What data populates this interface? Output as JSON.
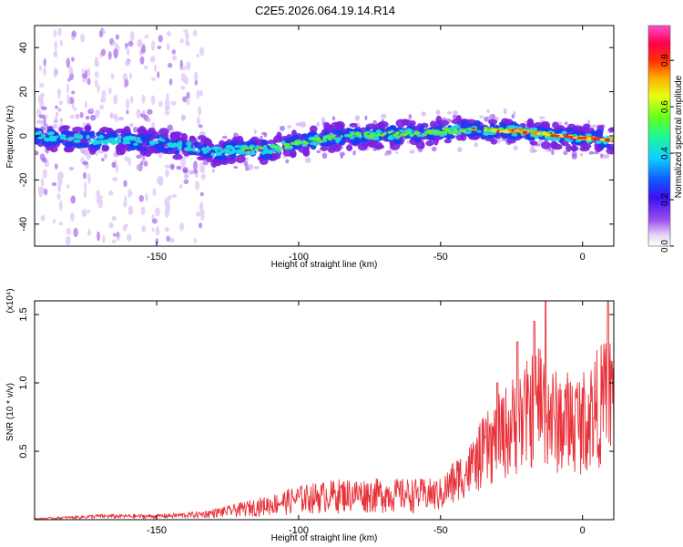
{
  "title": "C2E5.2026.064.19.14.R14",
  "colors": {
    "snr_line": "#e8323a",
    "spectrogram_ridge": [
      "#7b1fe0",
      "#1a3df0",
      "#18d8e0",
      "#66ee33",
      "#f2e81a",
      "#ff8a00",
      "#ff1a1a"
    ],
    "colormap": [
      "#ffffff",
      "#e0c8f4",
      "#9040f0",
      "#4010f0",
      "#1060ff",
      "#10d0ff",
      "#20ff80",
      "#80ff20",
      "#f8ff10",
      "#ffa000",
      "#ff2000",
      "#ff0060",
      "#ff40c0"
    ]
  },
  "chart_data": [
    {
      "type": "heatmap",
      "xlabel": "Height of straight line (km)",
      "ylabel": "Frequency (Hz)",
      "xlim": [
        -193,
        11
      ],
      "ylim": [
        -50,
        50
      ],
      "xticks": [
        -150,
        -100,
        -50,
        0
      ],
      "yticks": [
        -40,
        -20,
        0,
        20,
        40
      ],
      "colorbar": {
        "label": "Normalized spectral amplitude",
        "range": [
          0,
          0.95
        ],
        "ticks": [
          0.0,
          0.2,
          0.4,
          0.6,
          0.8
        ]
      },
      "ridge_center": [
        [
          -193,
          0
        ],
        [
          -170,
          -2
        ],
        [
          -150,
          -3
        ],
        [
          -130,
          -7
        ],
        [
          -110,
          -6
        ],
        [
          -95,
          -2
        ],
        [
          -80,
          0
        ],
        [
          -60,
          1
        ],
        [
          -40,
          3
        ],
        [
          -20,
          2
        ],
        [
          -10,
          0
        ],
        [
          0,
          -1
        ],
        [
          11,
          -2
        ]
      ],
      "noise_columns_x": [
        -190,
        -185,
        -180,
        -175,
        -170,
        -165,
        -160,
        -155,
        -150,
        -145,
        -140,
        -135
      ]
    },
    {
      "type": "line",
      "xlabel": "Height of straight line (km)",
      "ylabel": "SNR (10 * v/v)",
      "yunit_label": "(x10⁴)",
      "xlim": [
        -193,
        11
      ],
      "ylim": [
        0,
        1.6
      ],
      "xticks": [
        -150,
        -100,
        -50,
        0
      ],
      "yticks": [
        0.5,
        1.0,
        1.5
      ],
      "envelope": [
        [
          -193,
          0.01
        ],
        [
          -170,
          0.04
        ],
        [
          -150,
          0.04
        ],
        [
          -135,
          0.06
        ],
        [
          -125,
          0.1
        ],
        [
          -110,
          0.18
        ],
        [
          -100,
          0.25
        ],
        [
          -85,
          0.3
        ],
        [
          -70,
          0.3
        ],
        [
          -60,
          0.3
        ],
        [
          -50,
          0.3
        ],
        [
          -45,
          0.45
        ],
        [
          -40,
          0.55
        ],
        [
          -35,
          0.75
        ],
        [
          -30,
          0.9
        ],
        [
          -25,
          1.05
        ],
        [
          -20,
          1.15
        ],
        [
          -15,
          1.35
        ],
        [
          -10,
          1.1
        ],
        [
          0,
          1.1
        ],
        [
          5,
          1.25
        ],
        [
          11,
          1.4
        ]
      ],
      "peaks": [
        [
          -13,
          1.62
        ],
        [
          9,
          1.62
        ],
        [
          -23,
          1.3
        ],
        [
          -30,
          1.0
        ],
        [
          -17,
          1.45
        ]
      ]
    }
  ]
}
